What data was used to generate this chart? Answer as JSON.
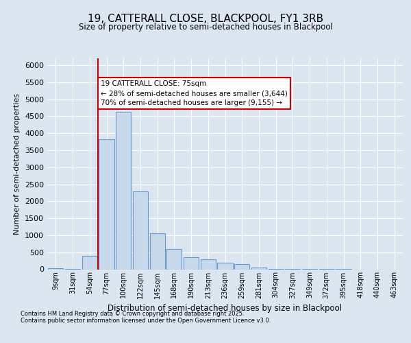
{
  "title1": "19, CATTERALL CLOSE, BLACKPOOL, FY1 3RB",
  "title2": "Size of property relative to semi-detached houses in Blackpool",
  "xlabel": "Distribution of semi-detached houses by size in Blackpool",
  "ylabel": "Number of semi-detached properties",
  "footnote1": "Contains HM Land Registry data © Crown copyright and database right 2025.",
  "footnote2": "Contains public sector information licensed under the Open Government Licence v3.0.",
  "bin_labels": [
    "9sqm",
    "31sqm",
    "54sqm",
    "77sqm",
    "100sqm",
    "122sqm",
    "145sqm",
    "168sqm",
    "190sqm",
    "213sqm",
    "236sqm",
    "259sqm",
    "281sqm",
    "304sqm",
    "327sqm",
    "349sqm",
    "372sqm",
    "395sqm",
    "418sqm",
    "440sqm",
    "463sqm"
  ],
  "bar_values": [
    30,
    5,
    400,
    3820,
    4620,
    2280,
    1060,
    600,
    355,
    300,
    200,
    160,
    55,
    10,
    5,
    2,
    1,
    1,
    0,
    0,
    0
  ],
  "bar_color": "#c9d9ec",
  "bar_edge_color": "#6699cc",
  "property_label": "19 CATTERALL CLOSE: 75sqm",
  "pct_smaller": 28,
  "pct_smaller_n": "3,644",
  "pct_larger": 70,
  "pct_larger_n": "9,155",
  "vline_color": "#cc0000",
  "annotation_box_color": "#cc0000",
  "ylim": [
    0,
    6200
  ],
  "yticks": [
    0,
    500,
    1000,
    1500,
    2000,
    2500,
    3000,
    3500,
    4000,
    4500,
    5000,
    5500,
    6000
  ],
  "background_color": "#dce6f1",
  "plot_bg_color": "#dce6f1",
  "grid_color": "#ffffff"
}
